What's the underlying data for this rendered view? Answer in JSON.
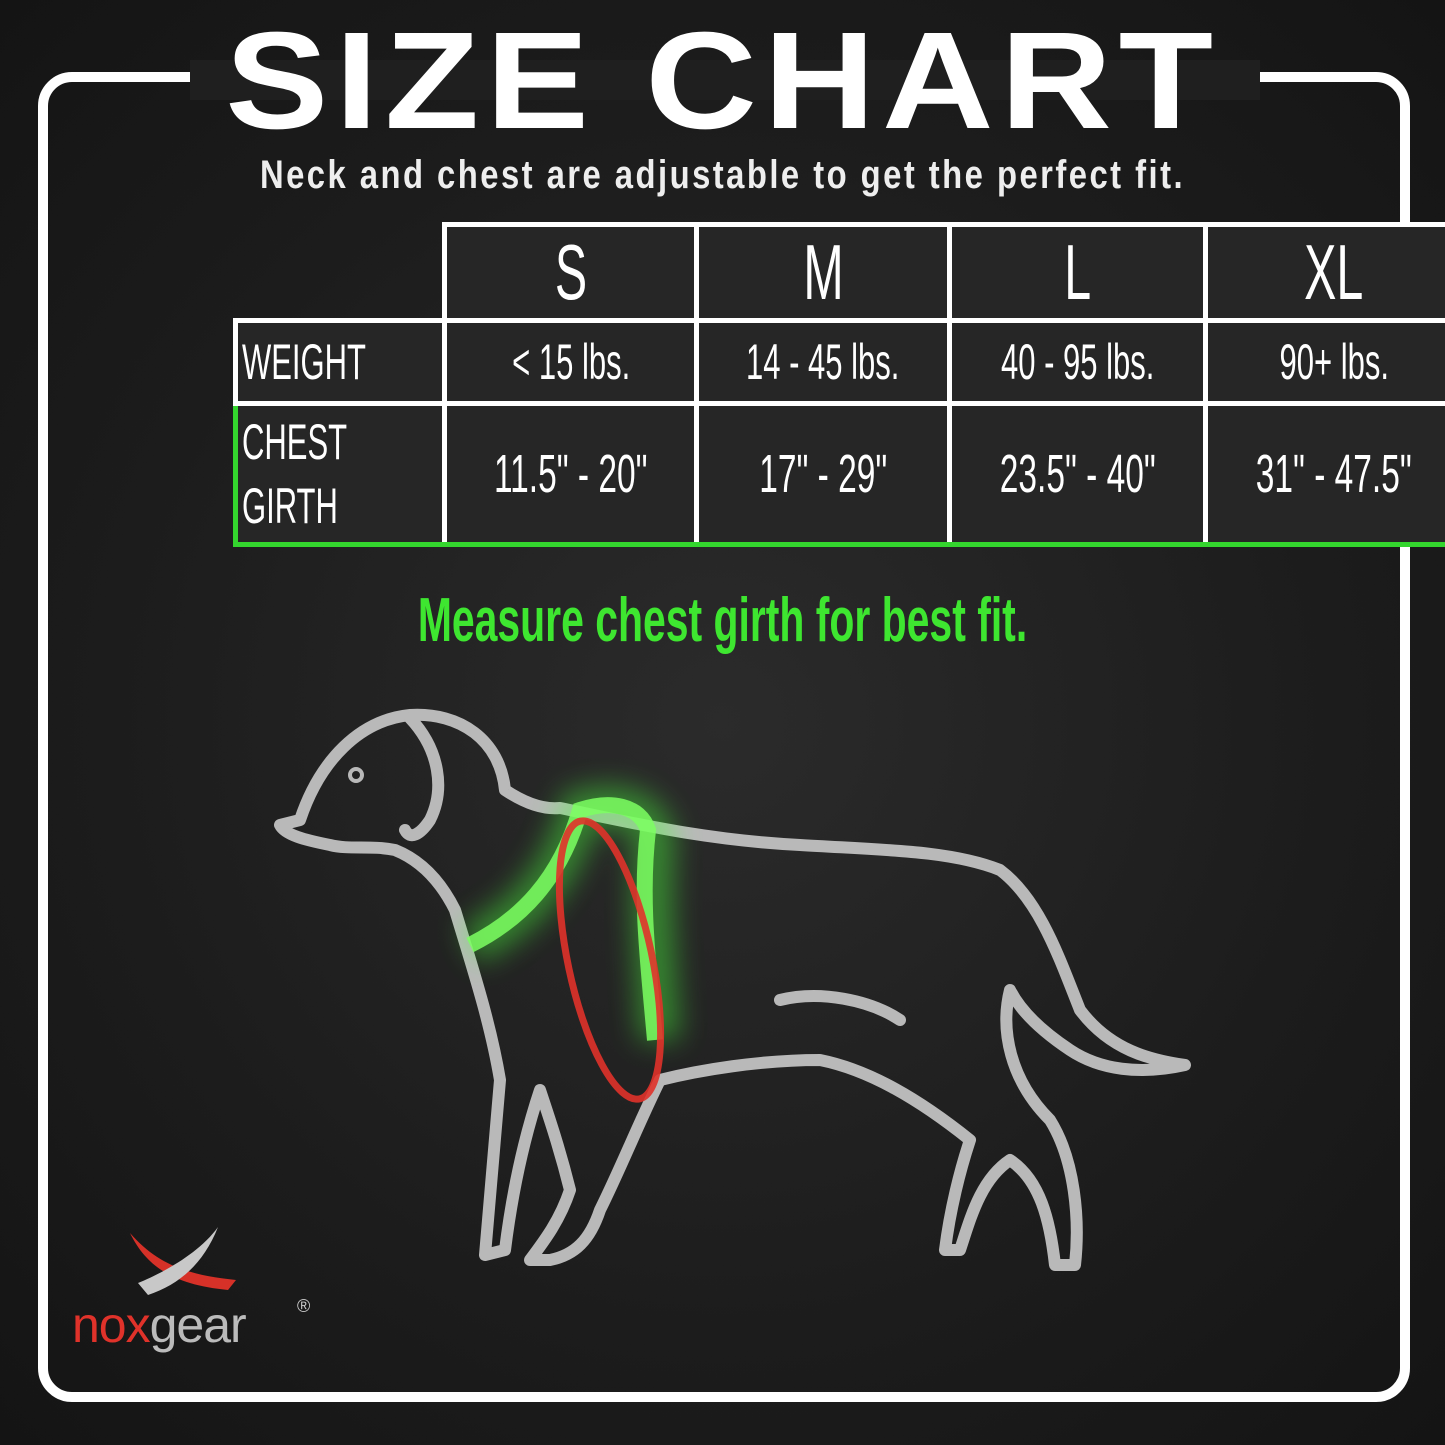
{
  "title": "SIZE CHART",
  "subtitle": "Neck and chest are adjustable to get the perfect fit.",
  "table": {
    "sizes": [
      "S",
      "M",
      "L",
      "XL"
    ],
    "rows": [
      {
        "label": "WEIGHT",
        "values": [
          "< 15 lbs.",
          "14 - 45 lbs.",
          "40 - 95 lbs.",
          "90+ lbs."
        ]
      },
      {
        "label_line1": "CHEST",
        "label_line2": "GIRTH",
        "values": [
          "11.5\" - 20\"",
          "17\" - 29\"",
          "23.5\" - 40\"",
          "31\" - 47.5\""
        ]
      }
    ]
  },
  "note": "Measure chest girth for best fit.",
  "logo": {
    "part1": "nox",
    "part2": "gear",
    "registered": "®"
  },
  "colors": {
    "highlight": "#34d62e",
    "girth_ring": "#e0322a",
    "background": "#1f1f1f"
  }
}
